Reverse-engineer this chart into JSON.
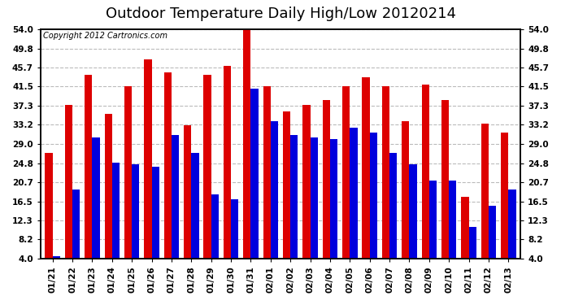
{
  "title": "Outdoor Temperature Daily High/Low 20120214",
  "copyright": "Copyright 2012 Cartronics.com",
  "dates": [
    "01/21",
    "01/22",
    "01/23",
    "01/24",
    "01/25",
    "01/26",
    "01/27",
    "01/28",
    "01/29",
    "01/30",
    "01/31",
    "02/01",
    "02/02",
    "02/03",
    "02/04",
    "02/05",
    "02/06",
    "02/07",
    "02/08",
    "02/09",
    "02/10",
    "02/11",
    "02/12",
    "02/13"
  ],
  "highs": [
    27.0,
    37.5,
    44.0,
    35.5,
    41.5,
    47.5,
    44.5,
    33.0,
    44.0,
    46.0,
    54.0,
    41.5,
    36.0,
    37.5,
    38.5,
    41.5,
    43.5,
    41.5,
    34.0,
    42.0,
    38.5,
    17.5,
    33.5,
    31.5
  ],
  "lows": [
    4.5,
    19.0,
    30.5,
    25.0,
    24.5,
    24.0,
    31.0,
    27.0,
    18.0,
    17.0,
    41.0,
    34.0,
    31.0,
    30.5,
    30.0,
    32.5,
    31.5,
    27.0,
    24.5,
    21.0,
    21.0,
    11.0,
    15.5,
    19.0
  ],
  "high_color": "#dd0000",
  "low_color": "#0000dd",
  "background_color": "#ffffff",
  "plot_bg_color": "#ffffff",
  "grid_color": "#bbbbbb",
  "yticks": [
    4.0,
    8.2,
    12.3,
    16.5,
    20.7,
    24.8,
    29.0,
    33.2,
    37.3,
    41.5,
    45.7,
    49.8,
    54.0
  ],
  "ymin": 4.0,
  "ymax": 54.0,
  "title_fontsize": 13,
  "copyright_fontsize": 7,
  "tick_fontsize": 7.5,
  "bar_width": 0.38
}
